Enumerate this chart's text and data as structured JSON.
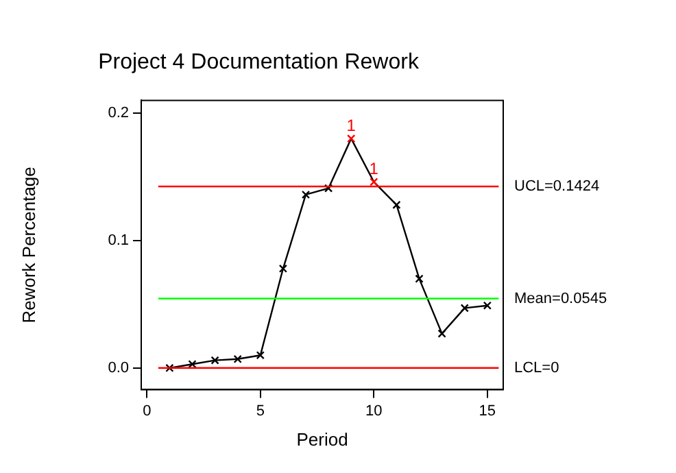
{
  "chart_data": {
    "type": "line",
    "title": "Project 4 Documentation Rework",
    "xlabel": "Period",
    "ylabel": "Rework Percentage",
    "x": [
      1,
      2,
      3,
      4,
      5,
      6,
      7,
      8,
      9,
      10,
      11,
      12,
      13,
      14,
      15
    ],
    "series": [
      {
        "color": "#000000",
        "colors": [
          "#000000",
          "#000000",
          "#000000",
          "#000000",
          "#000000",
          "#000000",
          "#000000",
          "#000000",
          "#ff0000",
          "#ff0000",
          "#000000",
          "#000000",
          "#000000",
          "#000000",
          "#000000"
        ],
        "values": [
          0.0,
          0.003,
          0.006,
          0.007,
          0.01,
          0.078,
          0.136,
          0.141,
          0.18,
          0.146,
          0.128,
          0.07,
          0.027,
          0.047,
          0.049
        ]
      }
    ],
    "xlim": [
      -0.25,
      15.7
    ],
    "xticks": [
      0,
      5,
      10,
      15
    ],
    "ylim": [
      -0.017,
      0.21
    ],
    "yticks": [
      {
        "value": 0,
        "label": "0.0"
      },
      {
        "value": 0.1,
        "label": "0.1"
      },
      {
        "value": 0.2,
        "label": "0.2"
      }
    ],
    "ref_lines": [
      {
        "axis": "y",
        "value": 0.1424,
        "label": "UCL=0.1424",
        "color": "#ff0000"
      },
      {
        "axis": "y",
        "value": 0.0545,
        "label": "Mean=0.0545",
        "color": "#00ff00"
      },
      {
        "axis": "y",
        "value": 0,
        "label": "LCL=0",
        "color": "#ff0000"
      }
    ],
    "annotations": [
      {
        "text": "1",
        "x": 9,
        "y": 0.18
      },
      {
        "text": "1",
        "x": 10,
        "y": 0.146
      }
    ],
    "marker": "cross",
    "line_style": "solid",
    "grid": false,
    "legend": false
  }
}
